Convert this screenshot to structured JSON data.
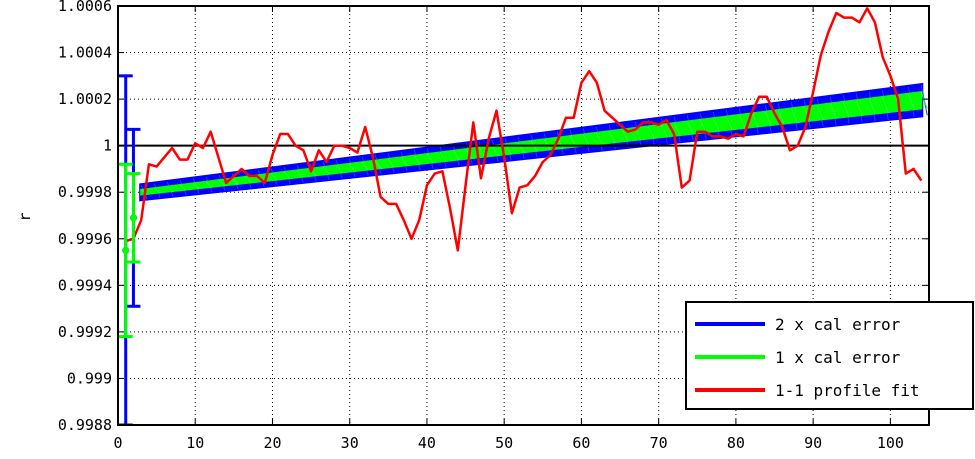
{
  "chart_data": {
    "type": "line",
    "title": "",
    "xlabel": "",
    "ylabel": "r",
    "xlim": [
      0,
      105
    ],
    "ylim": [
      0.9988,
      1.0006
    ],
    "grid": true,
    "legend_position": "bottom-right",
    "x_ticks": [
      0,
      10,
      20,
      30,
      40,
      50,
      60,
      70,
      80,
      90,
      100
    ],
    "x_tick_labels": [
      "0",
      "10",
      "20",
      "30",
      "40",
      "50",
      "60",
      "70",
      "80",
      "90",
      "100"
    ],
    "y_ticks": [
      0.9988,
      0.999,
      0.9992,
      0.9994,
      0.9996,
      0.9998,
      1,
      1.0002,
      1.0004,
      1.0006
    ],
    "y_tick_labels": [
      "0.9988",
      "0.999",
      "0.9992",
      "0.9994",
      "0.9996",
      "0.9998",
      "1",
      "1.0002",
      "1.0004",
      "1.0006"
    ],
    "reference_line": 1.0,
    "series": [
      {
        "name": "2 x cal error",
        "color": "#0000ff",
        "kind": "band",
        "x": [
          3,
          104
        ],
        "lower": [
          0.99977,
          1.00013
        ],
        "upper": [
          0.99983,
          1.00026
        ]
      },
      {
        "name": "1 x cal error",
        "color": "#00ff00",
        "kind": "band",
        "x": [
          3,
          104
        ],
        "lower": [
          0.99979,
          1.00016
        ],
        "upper": [
          0.99981,
          1.00023
        ]
      },
      {
        "name": "1-1 profile fit",
        "color": "#ff0000",
        "kind": "line",
        "x": [
          1,
          2,
          3,
          4,
          5,
          6,
          7,
          8,
          9,
          10,
          11,
          12,
          13,
          14,
          15,
          16,
          17,
          18,
          19,
          20,
          21,
          22,
          23,
          24,
          25,
          26,
          27,
          28,
          29,
          30,
          31,
          32,
          33,
          34,
          35,
          36,
          37,
          38,
          39,
          40,
          41,
          42,
          43,
          44,
          45,
          46,
          47,
          48,
          49,
          50,
          51,
          52,
          53,
          54,
          55,
          56,
          57,
          58,
          59,
          60,
          61,
          62,
          63,
          64,
          65,
          66,
          67,
          68,
          69,
          70,
          71,
          72,
          73,
          74,
          75,
          76,
          77,
          78,
          79,
          80,
          81,
          82,
          83,
          84,
          85,
          86,
          87,
          88,
          89,
          90,
          91,
          92,
          93,
          94,
          95,
          96,
          97,
          98,
          99,
          100,
          101,
          102,
          103,
          104
        ],
        "y": [
          0.99959,
          0.9996,
          0.99968,
          0.99992,
          0.99991,
          0.99995,
          0.99999,
          0.99994,
          0.99994,
          1.00001,
          0.99999,
          1.00006,
          0.99995,
          0.99984,
          0.99987,
          0.9999,
          0.99987,
          0.99987,
          0.99984,
          0.99996,
          1.00005,
          1.00005,
          1.0,
          0.99998,
          0.99989,
          0.99998,
          0.99993,
          1.0,
          1.0,
          0.99999,
          0.99997,
          1.00008,
          0.99995,
          0.99978,
          0.99975,
          0.99975,
          0.99968,
          0.9996,
          0.99968,
          0.99983,
          0.99988,
          0.99989,
          0.99973,
          0.99955,
          0.99983,
          1.0001,
          0.99986,
          1.00003,
          1.00015,
          0.99995,
          0.99971,
          0.99982,
          0.99983,
          0.99987,
          0.99993,
          0.99996,
          1.00003,
          1.00012,
          1.00012,
          1.00027,
          1.00032,
          1.00027,
          1.00015,
          1.00012,
          1.00009,
          1.00006,
          1.00007,
          1.0001,
          1.0001,
          1.00009,
          1.00011,
          1.00005,
          0.99982,
          0.99985,
          1.00006,
          1.00006,
          1.00004,
          1.00004,
          1.00003,
          1.00005,
          1.00004,
          1.00014,
          1.00021,
          1.00021,
          1.00014,
          1.00008,
          0.99998,
          1.0,
          1.00008,
          1.00023,
          1.00039,
          1.00049,
          1.00057,
          1.00055,
          1.00055,
          1.00053,
          1.00059,
          1.00053,
          1.00038,
          1.0003,
          1.0002,
          0.99988,
          0.9999,
          0.99985
        ]
      }
    ],
    "error_bars": [
      {
        "x": 1,
        "center": 0.99955,
        "low": 0.9988,
        "high": 1.0003,
        "color": "#0000ff"
      },
      {
        "x": 2,
        "center": 0.99969,
        "low": 0.99931,
        "high": 1.00007,
        "color": "#0000ff"
      },
      {
        "x": 1,
        "center": 0.99955,
        "low": 0.99918,
        "high": 0.99992,
        "color": "#00ff00"
      },
      {
        "x": 2,
        "center": 0.99969,
        "low": 0.9995,
        "high": 0.99988,
        "color": "#00ff00"
      }
    ]
  }
}
